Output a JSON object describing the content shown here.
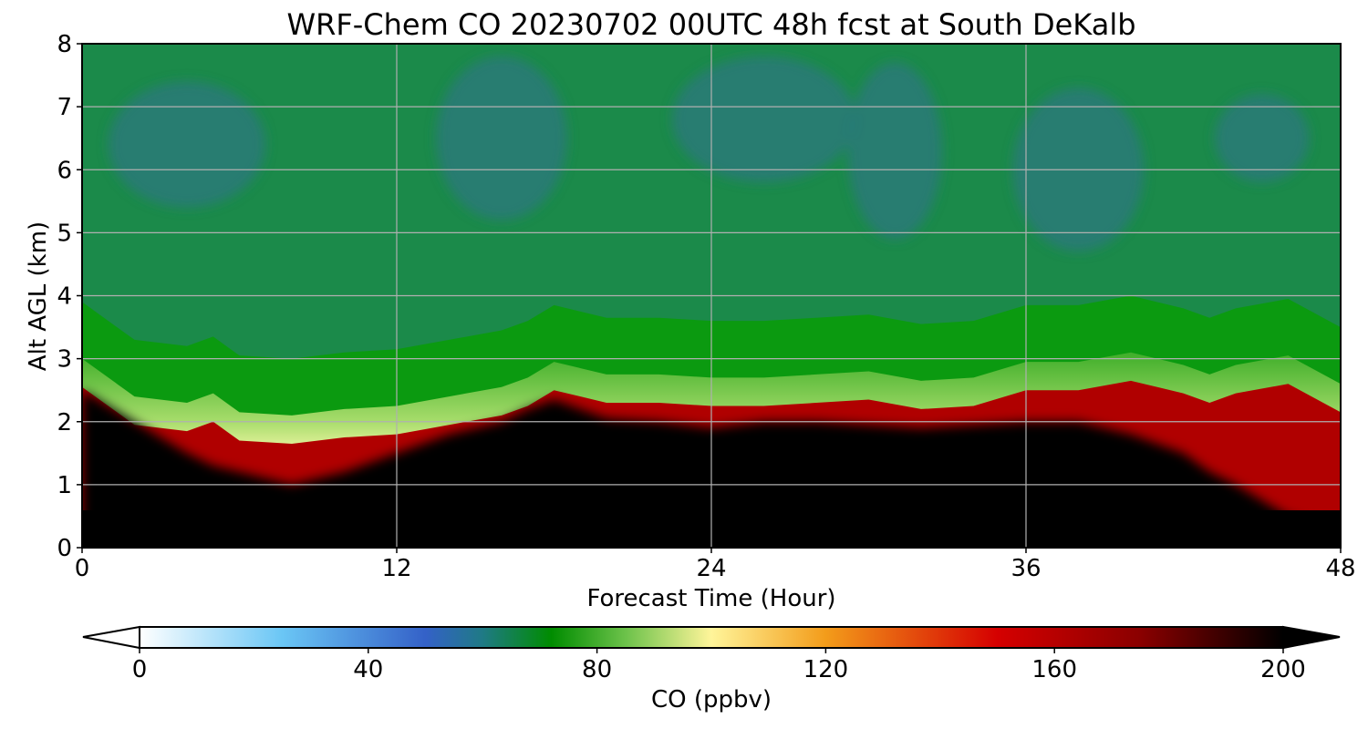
{
  "chart_data": {
    "type": "heatmap",
    "subtype": "filled-contour time-height cross-section",
    "title": "WRF-Chem CO  20230702 00UTC 48h fcst at South DeKalb",
    "xlabel": "Forecast Time (Hour)",
    "ylabel": "Alt AGL (km)",
    "xlim": [
      0,
      48
    ],
    "ylim": [
      0,
      8
    ],
    "xticks": [
      0,
      12,
      24,
      36,
      48
    ],
    "yticks": [
      0,
      1,
      2,
      3,
      4,
      5,
      6,
      7,
      8
    ],
    "grid": true,
    "colorbar": {
      "label": "CO  (ppbv)",
      "range": [
        0,
        200
      ],
      "ticks": [
        0,
        40,
        80,
        120,
        160,
        200
      ],
      "extend": "both",
      "orientation": "horizontal",
      "color_stops": [
        {
          "value": 0,
          "color": "#ffffff"
        },
        {
          "value": 25,
          "color": "#6ac6f5"
        },
        {
          "value": 50,
          "color": "#3461c8"
        },
        {
          "value": 60,
          "color": "#1f7a85"
        },
        {
          "value": 72,
          "color": "#008c00"
        },
        {
          "value": 85,
          "color": "#6cc24a"
        },
        {
          "value": 100,
          "color": "#fff59a"
        },
        {
          "value": 120,
          "color": "#f39c1a"
        },
        {
          "value": 150,
          "color": "#d50000"
        },
        {
          "value": 175,
          "color": "#8a0000"
        },
        {
          "value": 200,
          "color": "#000000"
        }
      ]
    },
    "features": {
      "transition_layer_top_km": {
        "hours": [
          0,
          2,
          4,
          5,
          6,
          8,
          10,
          12,
          14,
          16,
          17,
          18,
          20,
          22,
          24,
          26,
          28,
          30,
          32,
          34,
          36,
          38,
          40,
          42,
          43,
          44,
          46,
          48
        ],
        "values": [
          3.0,
          2.4,
          2.3,
          2.45,
          2.15,
          2.1,
          2.2,
          2.25,
          2.4,
          2.55,
          2.7,
          2.95,
          2.75,
          2.75,
          2.7,
          2.7,
          2.75,
          2.8,
          2.65,
          2.7,
          2.95,
          2.95,
          3.1,
          2.9,
          2.75,
          2.9,
          3.05,
          2.6
        ]
      },
      "black_core_top_km": {
        "hours": [
          0,
          2,
          4,
          5,
          6,
          8,
          10,
          12,
          14,
          16,
          17,
          18,
          20,
          22,
          24,
          26,
          28,
          30,
          32,
          34,
          36,
          38,
          40,
          42,
          43,
          44,
          46,
          48
        ],
        "values": [
          2.5,
          2.0,
          1.5,
          1.3,
          1.2,
          1.0,
          1.2,
          1.5,
          1.8,
          2.0,
          2.2,
          2.35,
          2.05,
          2.0,
          1.9,
          2.0,
          2.0,
          1.95,
          1.9,
          1.95,
          2.0,
          2.0,
          1.8,
          1.5,
          1.2,
          1.0,
          0.5,
          0.3
        ]
      },
      "upper_blue_pockets_ppbv": 60,
      "upper_green_background_ppbv": 72
    }
  }
}
